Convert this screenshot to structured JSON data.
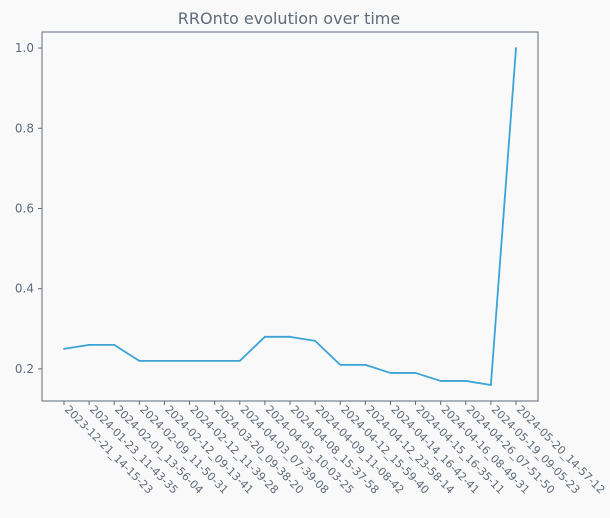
{
  "chart_data": {
    "type": "line",
    "title": "RROnto evolution over time",
    "xlabel": "",
    "ylabel": "",
    "categories": [
      "2023-12-21_14-15-23",
      "2024-01-23_11-43-35",
      "2024-02-01_13-56-04",
      "2024-02-09_11-50-31",
      "2024-02-12_09-13-41",
      "2024-02-12_11-39-28",
      "2024-03-20_09-38-20",
      "2024-04-03_07-39-08",
      "2024-04-05_10-03-25",
      "2024-04-08_15-37-58",
      "2024-04-09_11-08-42",
      "2024-04-12_15-59-40",
      "2024-04-12_23-58-14",
      "2024-04-14_16-42-41",
      "2024-04-15_16-35-11",
      "2024-04-16_08-49-31",
      "2024-04-26_07-51-50",
      "2024-05-19_09-05-23",
      "2024-05-20_14-57-12"
    ],
    "series": [
      {
        "name": "RROnto",
        "values": [
          0.25,
          0.26,
          0.26,
          0.22,
          0.22,
          0.22,
          0.22,
          0.22,
          0.28,
          0.28,
          0.27,
          0.21,
          0.21,
          0.19,
          0.19,
          0.17,
          0.17,
          0.16,
          1.0
        ]
      }
    ],
    "ylim": [
      0.12,
      1.04
    ],
    "yticks": [
      0.2,
      0.4,
      0.6,
      0.8,
      1.0
    ],
    "ytick_labels": [
      "0.2",
      "0.4",
      "0.6",
      "0.8",
      "1.0"
    ],
    "grid": false,
    "legend": "none",
    "colors": {
      "line": "#3ba3d6",
      "axis": "#5f6b7a",
      "text": "#5f6b7a",
      "background": "#f9f9f9"
    }
  }
}
